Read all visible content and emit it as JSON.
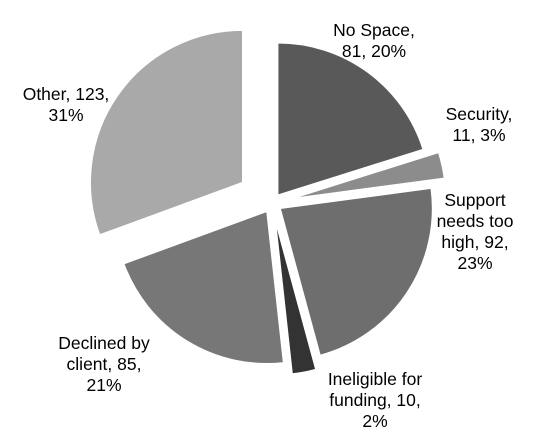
{
  "chart_data": {
    "type": "pie",
    "title": "",
    "legend": "none",
    "slices": [
      {
        "label": "No Space",
        "value": 81,
        "percent": "20%",
        "color": "#595959",
        "text_lines": [
          "No Space,",
          "81, 20%"
        ]
      },
      {
        "label": "Security",
        "value": 11,
        "percent": "3%",
        "color": "#8c8c8c",
        "text_lines": [
          "Security,",
          "11, 3%"
        ]
      },
      {
        "label": "Support needs too high",
        "value": 92,
        "percent": "23%",
        "color": "#6e6e6e",
        "text_lines": [
          "Support",
          "needs too",
          "high, 92,",
          "23%"
        ]
      },
      {
        "label": "Ineligible for funding",
        "value": 10,
        "percent": "2%",
        "color": "#333333",
        "text_lines": [
          "Ineligible for",
          "funding, 10,",
          "2%"
        ]
      },
      {
        "label": "Declined by client",
        "value": 85,
        "percent": "21%",
        "color": "#777777",
        "text_lines": [
          "Declined by",
          "client, 85,",
          "21%"
        ]
      },
      {
        "label": "Other",
        "value": 123,
        "percent": "31%",
        "color": "#a9a9a9",
        "text_lines": [
          "Other, 123,",
          "31%"
        ]
      }
    ]
  }
}
